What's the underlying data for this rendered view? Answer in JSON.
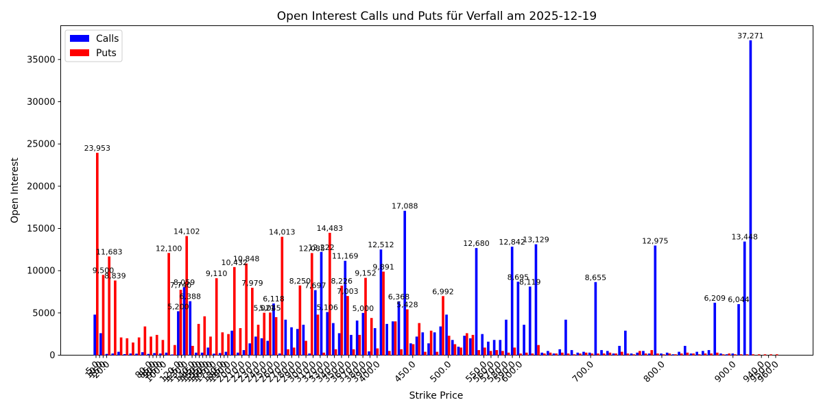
{
  "chart_data": {
    "type": "bar",
    "title": "Open Interest Calls und Puts für Verfall am 2025-12-19",
    "xlabel": "Strike Price",
    "ylabel": "Open Interest",
    "ylim": [
      0,
      39000
    ],
    "yticks": [
      0,
      5000,
      10000,
      15000,
      20000,
      25000,
      30000,
      35000
    ],
    "legend_position": "top-left",
    "grid": false,
    "colors": {
      "calls": "#0000ff",
      "puts": "#ff0000"
    },
    "xtick_labels": [
      "5.0",
      "10.0",
      "15.0",
      "20.0",
      "80.0",
      "85.0",
      "90.0",
      "95.0",
      "100.0",
      "120.0",
      "125.0",
      "130.0",
      "140.0",
      "145.0",
      "150.0",
      "155.0",
      "160.0",
      "165.0",
      "170.0",
      "180.0",
      "185.0",
      "190.0",
      "200.0",
      "210.0",
      "220.0",
      "230.0",
      "240.0",
      "250.0",
      "260.0",
      "270.0",
      "280.0",
      "290.0",
      "300.0",
      "310.0",
      "320.0",
      "330.0",
      "340.0",
      "350.0",
      "360.0",
      "370.0",
      "380.0",
      "390.0",
      "400.0",
      "450.0",
      "500.0",
      "550.0",
      "560.0",
      "570.0",
      "580.0",
      "590.0",
      "600.0",
      "700.0",
      "800.0",
      "900.0",
      "940.0",
      "950.0",
      "960.0"
    ],
    "series": [
      {
        "name": "Calls",
        "values": [
          4800,
          2600,
          150,
          200,
          400,
          120,
          200,
          180,
          350,
          150,
          250,
          200,
          300,
          80,
          5200,
          8059,
          6388,
          300,
          300,
          900,
          180,
          250,
          400,
          2900,
          300,
          600,
          1400,
          2200,
          2000,
          1700,
          6118,
          200,
          4200,
          3300,
          3100,
          3600,
          200,
          7697,
          12222,
          5106,
          3800,
          2600,
          11169,
          2400,
          4100,
          5000,
          450,
          3200,
          12512,
          3700,
          4000,
          6368,
          17088,
          1400,
          2200,
          2700,
          1400,
          2700,
          3400,
          4800,
          1800,
          1000,
          2300,
          2000,
          12680,
          2500,
          1600,
          1800,
          1800,
          4200,
          12842,
          8695,
          3600,
          8119,
          13129,
          300,
          500,
          200,
          700,
          4200,
          600,
          300,
          400,
          300,
          8655,
          600,
          500,
          200,
          1100,
          2900,
          200,
          300,
          500,
          200,
          12975,
          200,
          300,
          100,
          400,
          1100,
          200,
          400,
          500,
          600,
          6209,
          200,
          100,
          200,
          6044,
          13448,
          37271
        ]
      },
      {
        "name": "Puts",
        "values": [
          23953,
          9500,
          11683,
          8839,
          2100,
          2000,
          1500,
          2100,
          3400,
          2200,
          2400,
          1800,
          12100,
          1200,
          7740,
          14102,
          1100,
          3700,
          4600,
          2200,
          9110,
          2700,
          2500,
          10432,
          3200,
          10848,
          7979,
          3600,
          5021,
          5045,
          4500,
          14013,
          700,
          900,
          8250,
          1700,
          12085,
          4800,
          300,
          14483,
          700,
          8226,
          7003,
          700,
          2400,
          9152,
          4400,
          800,
          9891,
          500,
          4000,
          700,
          5428,
          1300,
          3800,
          400,
          2900,
          400,
          6992,
          2300,
          1300,
          900,
          2600,
          2400,
          600,
          900,
          500,
          600,
          500,
          300,
          900,
          200,
          300,
          200,
          1200,
          200,
          300,
          200,
          300,
          200,
          100,
          200,
          300,
          200,
          200,
          200,
          300,
          200,
          400,
          200,
          100,
          500,
          200,
          600,
          200,
          100,
          200,
          100,
          200,
          300,
          200,
          100,
          200,
          200,
          300,
          100,
          200,
          100,
          100,
          100,
          100,
          100,
          100,
          100,
          100
        ]
      }
    ]
  }
}
